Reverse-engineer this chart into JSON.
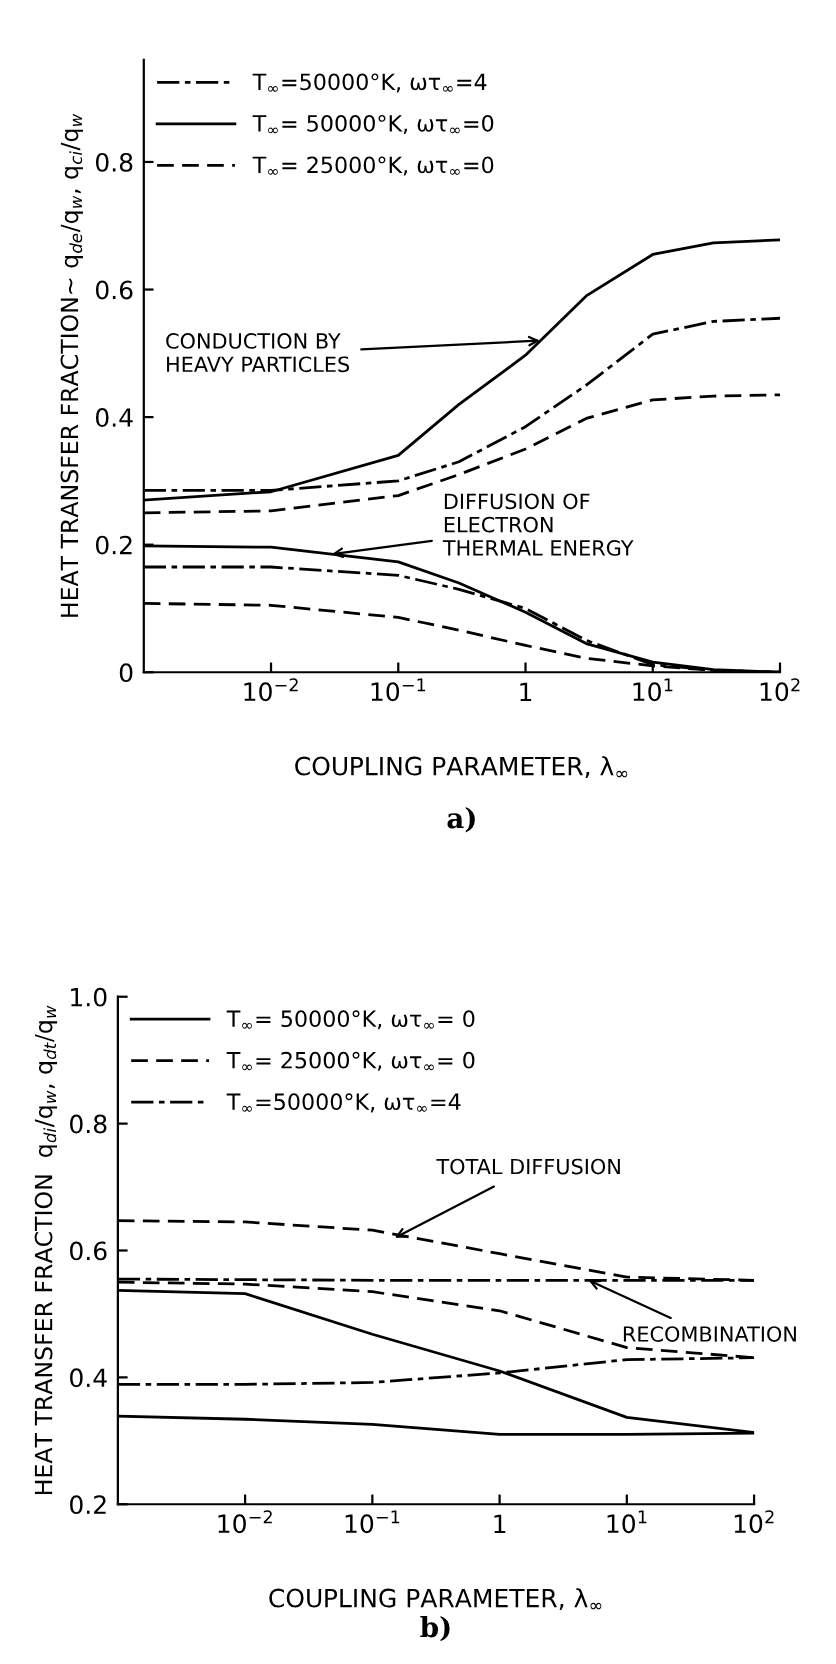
{
  "chart_data": [
    {
      "type": "line",
      "xlabel": "COUPLING PARAMETER, λ$_{∞}$",
      "ylabel": "HEAT TRANSFER FRACTION~ q$_{de}$/q$_{w}$, q$_{ci}$/q$_{w}$",
      "x": [
        0.001,
        0.01,
        0.1,
        0.3,
        1,
        3,
        10,
        30,
        100
      ],
      "series": [
        {
          "name": "T$_{∞}$=50000°K, ωτ$_{∞}$=4",
          "color": "#000000",
          "line_style": "dashdot",
          "values": [
            0.285,
            0.285,
            0.3,
            0.33,
            0.385,
            0.45,
            0.53,
            0.55,
            0.555
          ]
        },
        {
          "name": "T$_{∞}$= 50000°K, ωτ$_{∞}$=0",
          "color": "#000000",
          "line_style": "solid",
          "values": [
            0.27,
            0.283,
            0.34,
            0.42,
            0.497,
            0.59,
            0.655,
            0.673,
            0.678
          ]
        },
        {
          "name": "T$_{∞}$= 25000°K, ωτ$_{∞}$=0",
          "color": "#000000",
          "line_style": "dashed",
          "values": [
            0.25,
            0.253,
            0.277,
            0.31,
            0.35,
            0.398,
            0.427,
            0.433,
            0.435
          ]
        },
        {
          "color": "#000000",
          "line_style": "dashdot",
          "values": [
            0.165,
            0.165,
            0.152,
            0.13,
            0.1,
            0.05,
            0.012,
            0.003,
            0.0
          ]
        },
        {
          "color": "#000000",
          "line_style": "solid",
          "values": [
            0.198,
            0.196,
            0.173,
            0.14,
            0.094,
            0.045,
            0.016,
            0.004,
            0.0
          ]
        },
        {
          "color": "#000000",
          "line_style": "dashed",
          "values": [
            0.108,
            0.105,
            0.086,
            0.066,
            0.042,
            0.022,
            0.01,
            0.003,
            0.0
          ]
        }
      ],
      "log": "x",
      "xlim": [
        0.001,
        100
      ],
      "xticks": [
        {
          "value": 0.01,
          "label": "10$^{−2}$"
        },
        {
          "value": 0.1,
          "label": "10$^{−1}$"
        },
        {
          "value": 1,
          "label": "1"
        },
        {
          "value": 10,
          "label": "10$^{1}$"
        },
        {
          "value": 100,
          "label": "10$^{2}$"
        }
      ],
      "ylim": [
        0,
        0.96
      ],
      "yticks": [
        {
          "value": 0,
          "label": "0"
        },
        0.2,
        0.4,
        0.6,
        0.8
      ],
      "legend": "top left",
      "annotations": [
        {
          "text": "CONDUCTION BY\nHEAVY PARTICLES",
          "x": 1.3,
          "y": 0.52
        },
        {
          "text": "DIFFUSION OF\nELECTRON\nTHERMAL ENERGY",
          "x": 0.03,
          "y": 0.185
        },
        "a)"
      ]
    },
    {
      "type": "line",
      "xlabel": "COUPLING PARAMETER, λ$_{∞}$",
      "ylabel": "HEAT TRANSFER FRACTION  q$_{di}$/q$_{w}$, q$_{dt}$/q$_{w}$",
      "x": [
        0.001,
        0.01,
        0.1,
        1,
        10,
        100
      ],
      "series": [
        {
          "name": "T$_{∞}$= 50000°K, ωτ$_{∞}$= 0",
          "color": "#000000",
          "line_style": "solid",
          "values": [
            0.537,
            0.532,
            0.468,
            0.41,
            0.337,
            0.313
          ]
        },
        {
          "name": "T$_{∞}$= 25000°K, ωτ$_{∞}$= 0",
          "color": "#000000",
          "line_style": "dashed",
          "values": [
            0.647,
            0.645,
            0.632,
            0.595,
            0.558,
            0.553
          ]
        },
        {
          "name": "T$_{∞}$=50000°K, ωτ$_{∞}$=4",
          "color": "#000000",
          "line_style": "dashdot",
          "values": [
            0.555,
            0.554,
            0.553,
            0.553,
            0.553,
            0.553
          ]
        },
        {
          "color": "#000000",
          "line_style": "solid",
          "values": [
            0.339,
            0.334,
            0.326,
            0.31,
            0.31,
            0.312
          ]
        },
        {
          "color": "#000000",
          "line_style": "dashed",
          "values": [
            0.55,
            0.547,
            0.535,
            0.505,
            0.447,
            0.431
          ]
        },
        {
          "color": "#000000",
          "line_style": "dashdot",
          "values": [
            0.389,
            0.389,
            0.392,
            0.407,
            0.428,
            0.431
          ]
        }
      ],
      "log": "x",
      "xlim": [
        0.001,
        100
      ],
      "xticks": [
        {
          "value": 0.01,
          "label": "10$^{−2}$"
        },
        {
          "value": 0.1,
          "label": "10$^{−1}$"
        },
        {
          "value": 1,
          "label": "1"
        },
        {
          "value": 10,
          "label": "10$^{1}$"
        },
        {
          "value": 100,
          "label": "10$^{2}$"
        }
      ],
      "ylim": [
        0.2,
        1.0
      ],
      "yticks": [
        0.2,
        0.4,
        0.6,
        0.8,
        {
          "value": 1,
          "label": "1.0"
        }
      ],
      "legend": "top left",
      "annotations": [
        {
          "text": "TOTAL DIFFUSION",
          "x": 0.15,
          "y": 0.62
        },
        {
          "text": "RECOMBINATION",
          "x": 5,
          "y": 0.553
        },
        "b)"
      ]
    }
  ]
}
